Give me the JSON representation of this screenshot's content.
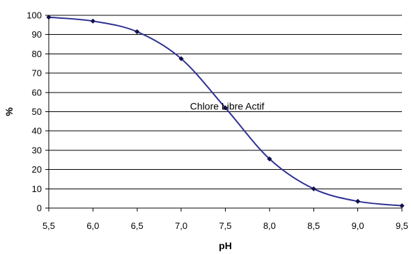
{
  "chart_data": {
    "type": "line",
    "title": "",
    "xlabel": "pH",
    "ylabel": "%",
    "x": [
      5.5,
      6.0,
      6.5,
      7.0,
      7.5,
      8.0,
      8.5,
      9.0,
      9.5
    ],
    "x_tick_labels": [
      "5,5",
      "6,0",
      "6,5",
      "7,0",
      "7,5",
      "8,0",
      "8,5",
      "9,0",
      "9,5"
    ],
    "y_ticks": [
      0,
      10,
      20,
      30,
      40,
      50,
      60,
      70,
      80,
      90,
      100
    ],
    "xlim": [
      5.5,
      9.5
    ],
    "ylim": [
      0,
      100
    ],
    "grid": "horizontal",
    "series": [
      {
        "values": [
          99,
          97,
          91.5,
          77.5,
          52,
          25.5,
          10,
          3.5,
          1.2
        ],
        "color": "#2e3192",
        "marker_color": "#10104a",
        "smooth": true
      }
    ],
    "annotations": [
      {
        "text": "Chlore Libre Actif",
        "x": 7.1,
        "y": 51
      }
    ]
  }
}
